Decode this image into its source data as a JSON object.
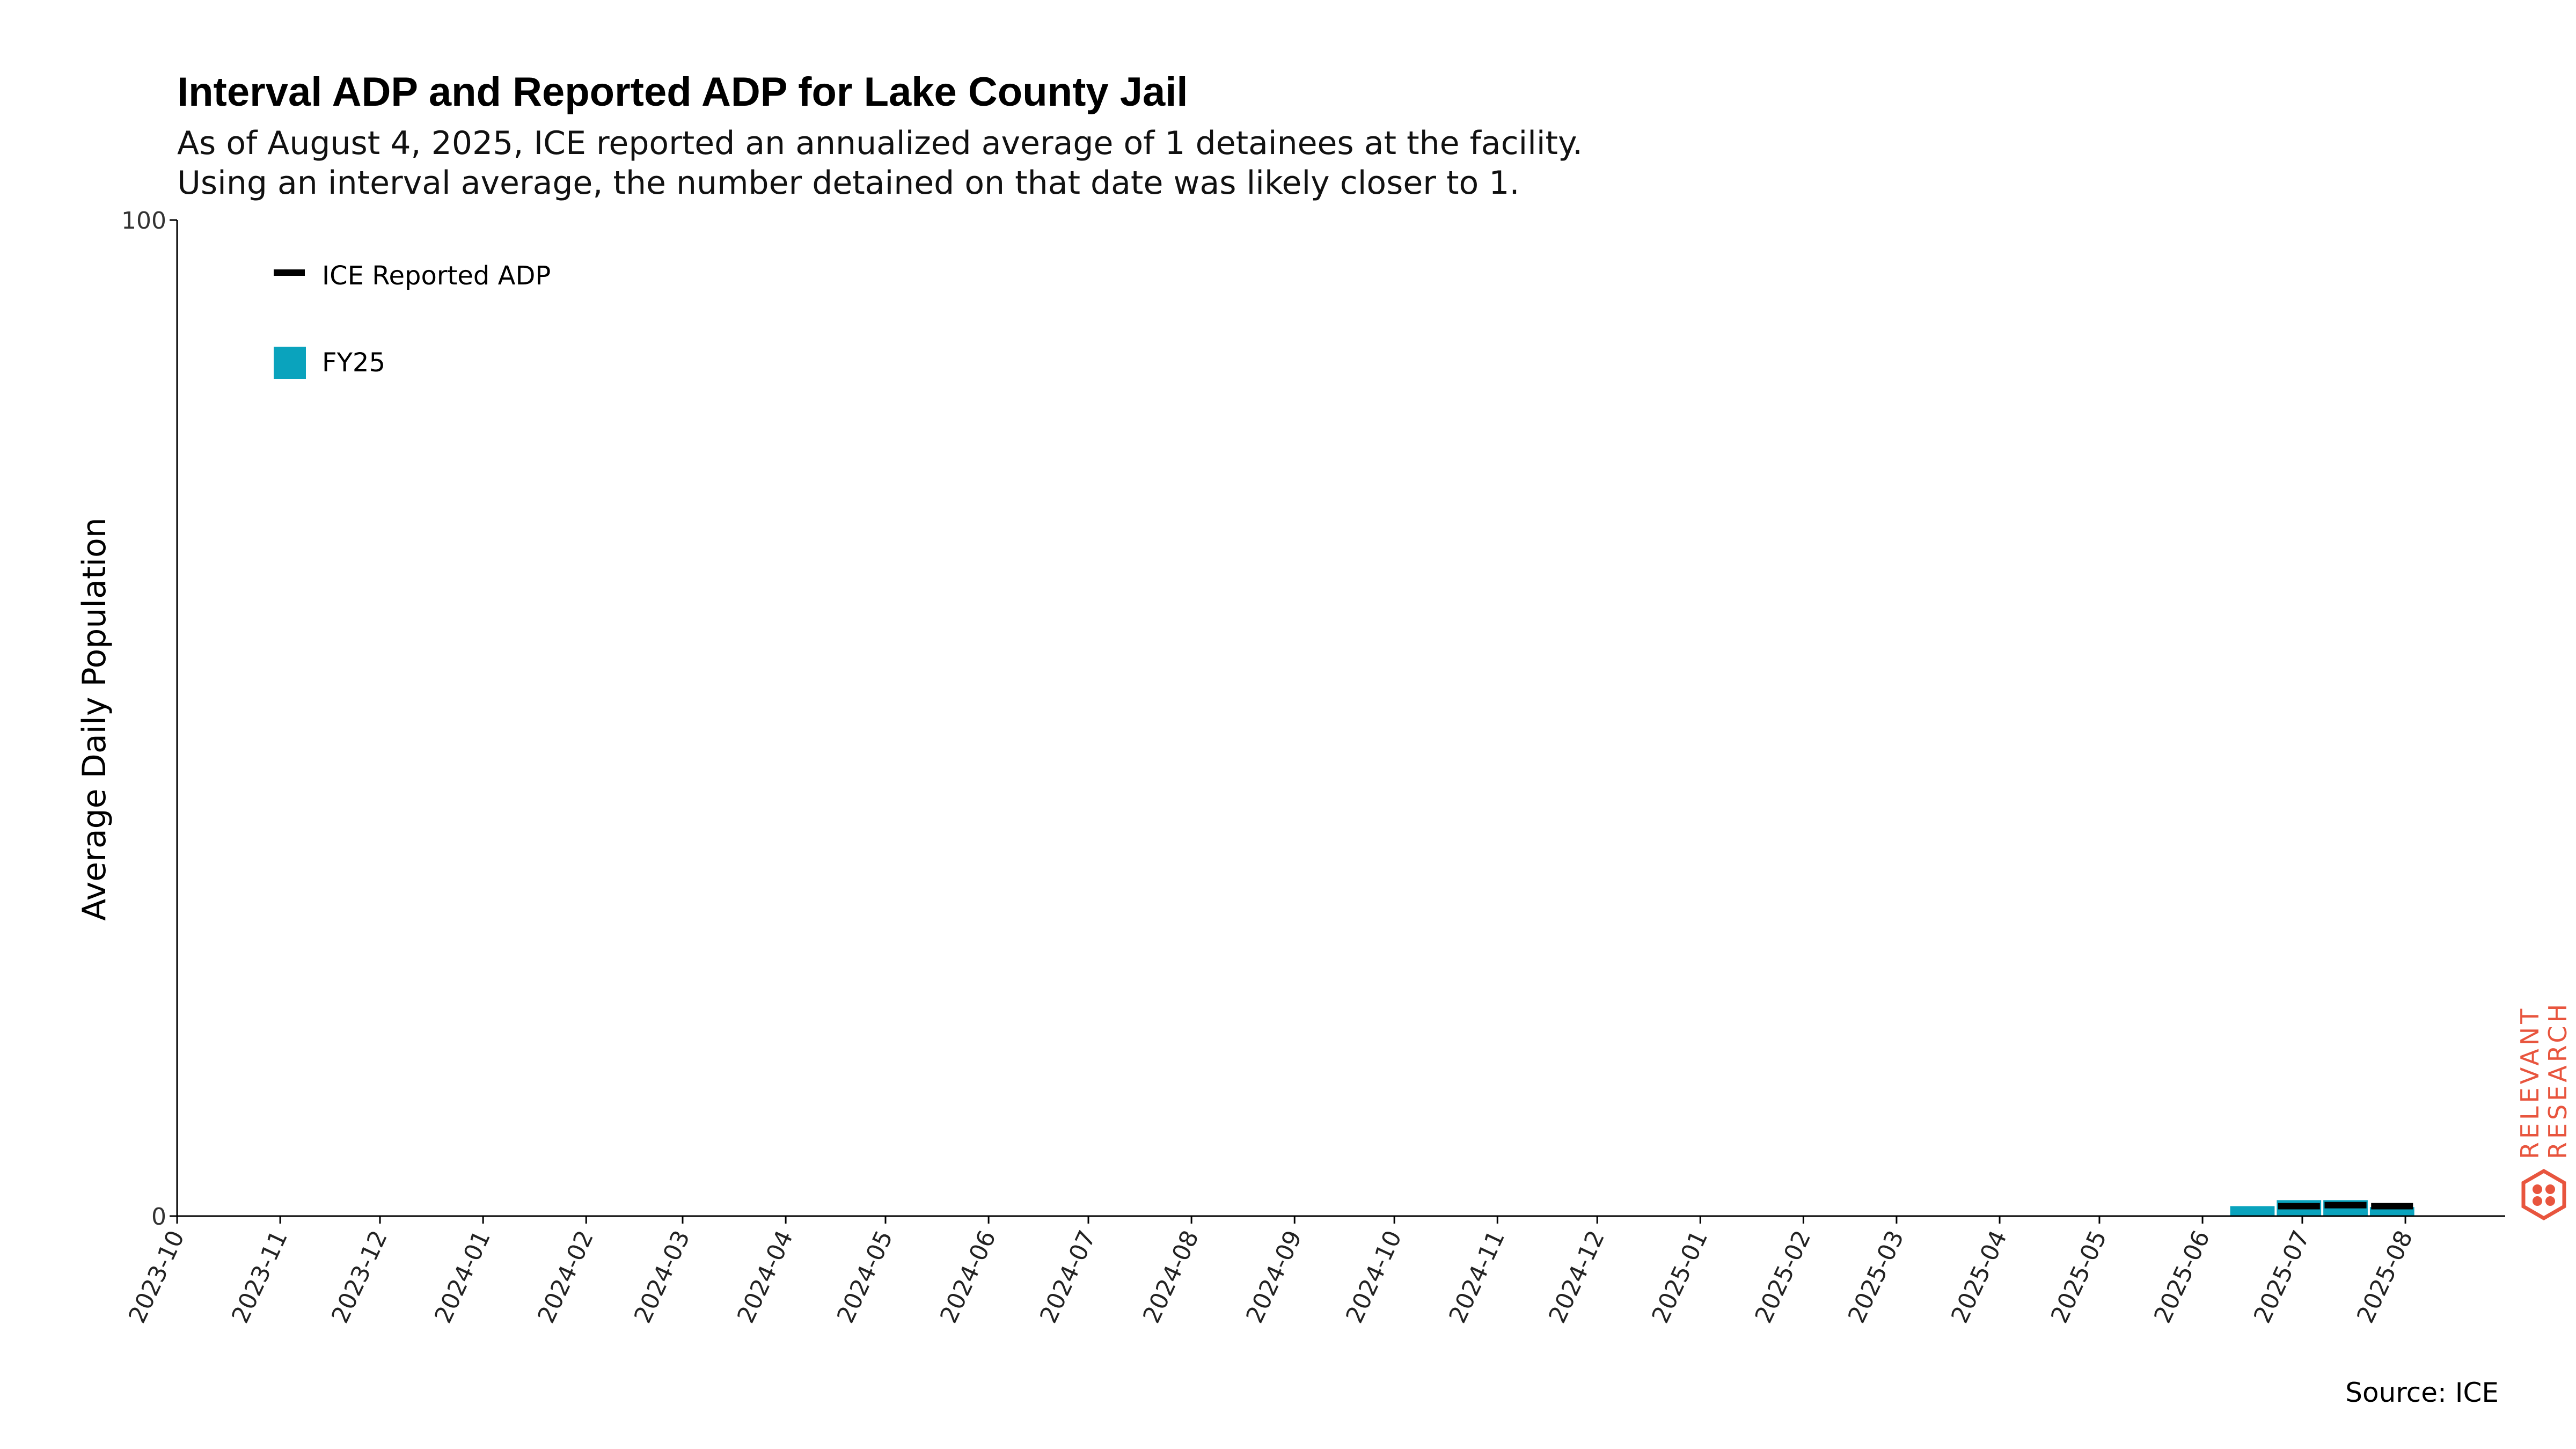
{
  "title": "Interval ADP and Reported ADP for Lake County Jail",
  "subtitle_lines": [
    "As of August 4, 2025, ICE reported an annualized average of 1 detainees at the facility.",
    "Using an interval average, the number detained on that date was likely closer to 1."
  ],
  "source": "Source: ICE",
  "logo": {
    "line1": "RELEVANT",
    "line2": "RESEARCH",
    "color": "#e8553e"
  },
  "chart_data": {
    "type": "bar",
    "ylabel": "Average Daily Population",
    "xlabel": "",
    "ylim": [
      0,
      100
    ],
    "yticks": [
      0,
      100
    ],
    "xlim": [
      "2023-10-01",
      "2025-08-31"
    ],
    "xticks": [
      "2023-10",
      "2023-11",
      "2023-12",
      "2024-01",
      "2024-02",
      "2024-03",
      "2024-04",
      "2024-05",
      "2024-06",
      "2024-07",
      "2024-08",
      "2024-09",
      "2024-10",
      "2024-11",
      "2024-12",
      "2025-01",
      "2025-02",
      "2025-03",
      "2025-04",
      "2025-05",
      "2025-06",
      "2025-07",
      "2025-08"
    ],
    "grid": false,
    "legend_position": "top-left",
    "series": [
      {
        "name": "FY25",
        "kind": "interval",
        "color": "#0aa3bd",
        "intervals": [
          {
            "start": "2025-06-09",
            "end": "2025-06-23",
            "value": 1
          },
          {
            "start": "2025-06-23",
            "end": "2025-07-07",
            "value": 1.6
          },
          {
            "start": "2025-07-07",
            "end": "2025-07-21",
            "value": 1.6
          },
          {
            "start": "2025-07-21",
            "end": "2025-08-04",
            "value": 0.9
          }
        ]
      },
      {
        "name": "ICE Reported ADP",
        "kind": "level",
        "color": "#000000",
        "points": [
          {
            "start": "2025-06-23",
            "end": "2025-07-07",
            "value": 1
          },
          {
            "start": "2025-07-07",
            "end": "2025-07-21",
            "value": 1.1
          },
          {
            "start": "2025-07-21",
            "end": "2025-08-04",
            "value": 1
          }
        ]
      }
    ]
  }
}
